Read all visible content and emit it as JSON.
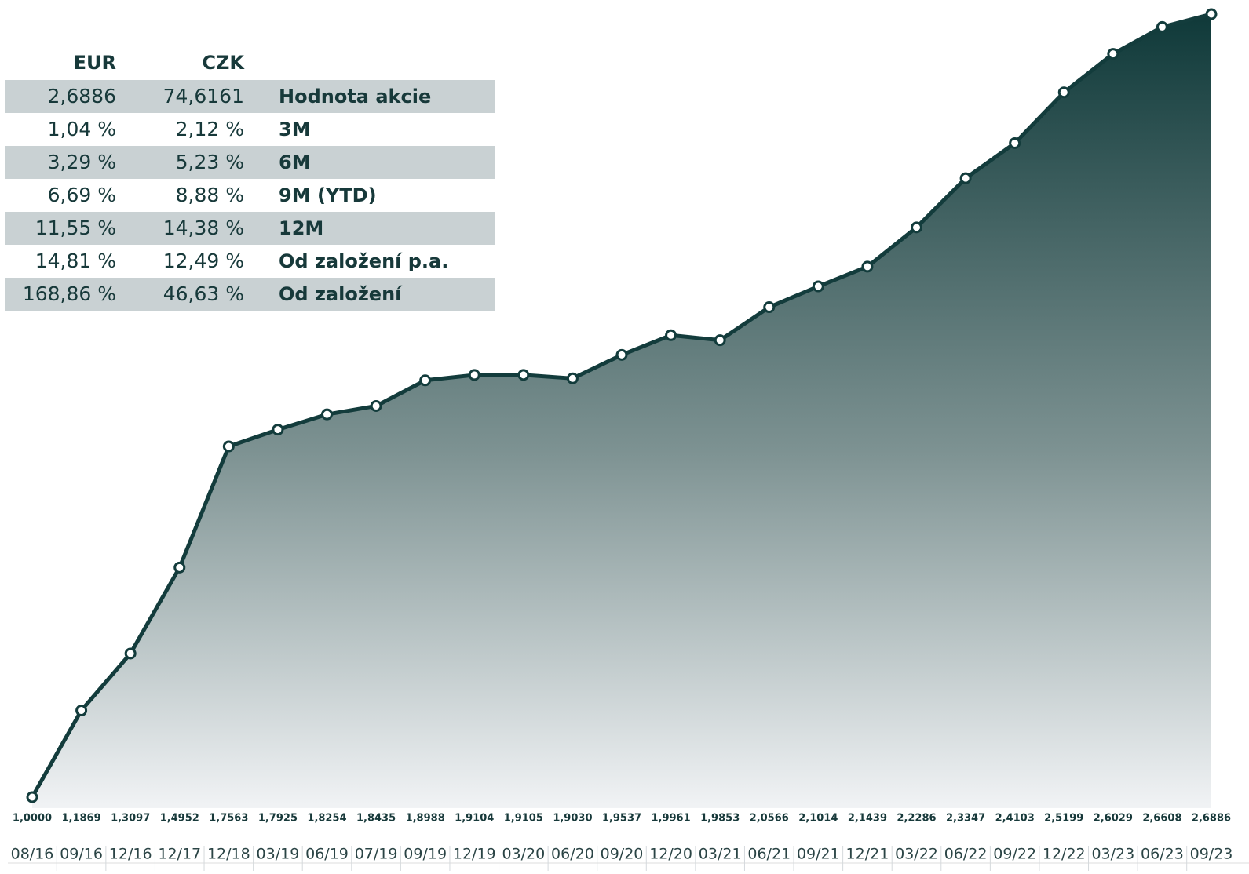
{
  "chart_data": {
    "type": "area",
    "categories": [
      "08/16",
      "09/16",
      "12/16",
      "12/17",
      "12/18",
      "03/19",
      "06/19",
      "07/19",
      "09/19",
      "12/19",
      "03/20",
      "06/20",
      "09/20",
      "12/20",
      "03/21",
      "06/21",
      "09/21",
      "12/21",
      "03/22",
      "06/22",
      "09/22",
      "12/22",
      "03/23",
      "06/23",
      "09/23"
    ],
    "values": [
      1.0,
      1.1869,
      1.3097,
      1.4952,
      1.7563,
      1.7925,
      1.8254,
      1.8435,
      1.8988,
      1.9104,
      1.9105,
      1.903,
      1.9537,
      1.9961,
      1.9853,
      2.0566,
      2.1014,
      2.1439,
      2.2286,
      2.3347,
      2.4103,
      2.5199,
      2.6029,
      2.6608,
      2.6886
    ],
    "value_labels": [
      "1,0000",
      "1,1869",
      "1,3097",
      "1,4952",
      "1,7563",
      "1,7925",
      "1,8254",
      "1,8435",
      "1,8988",
      "1,9104",
      "1,9105",
      "1,9030",
      "1,9537",
      "1,9961",
      "1,9853",
      "2,0566",
      "2,1014",
      "2,1439",
      "2,2286",
      "2,3347",
      "2,4103",
      "2,5199",
      "2,6029",
      "2,6608",
      "2,6886"
    ],
    "color": "#133c3c"
  },
  "table": {
    "header": [
      "EUR",
      "CZK"
    ],
    "rows": [
      [
        "2,6886",
        "74,6161",
        "Hodnota akcie"
      ],
      [
        "1,04 %",
        "2,12 %",
        "3M"
      ],
      [
        "3,29 %",
        "5,23 %",
        "6M"
      ],
      [
        "6,69 %",
        "8,88 %",
        "9M (YTD)"
      ],
      [
        "11,55 %",
        "14,38 %",
        "12M"
      ],
      [
        "14,81 %",
        "12,49 %",
        "Od založení p.a."
      ],
      [
        "168,86 %",
        "46,63 %",
        "Od založení"
      ]
    ]
  }
}
